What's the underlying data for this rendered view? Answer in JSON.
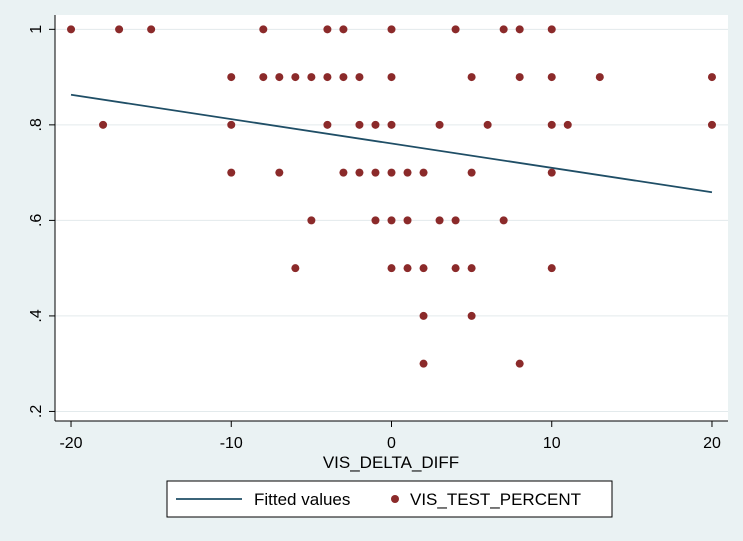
{
  "chart_data": {
    "type": "scatter",
    "title": "",
    "xlabel": "VIS_DELTA_DIFF",
    "ylabel": "",
    "xlim": [
      -21,
      21
    ],
    "ylim": [
      0.18,
      1.03
    ],
    "grid": true,
    "x_ticks": [
      -20,
      -10,
      0,
      10,
      20
    ],
    "x_tick_labels": [
      "-20",
      "-10",
      "0",
      "10",
      "20"
    ],
    "y_ticks": [
      0.2,
      0.4,
      0.6,
      0.8,
      1.0
    ],
    "y_tick_labels": [
      ".2",
      ".4",
      ".6",
      ".8",
      "1"
    ],
    "legend_position": "bottom",
    "colors": {
      "scatter": "#8b2a2a",
      "fit": "#1f4e66",
      "plot_bg": "#ffffff",
      "outer_bg": "#eaf2f3",
      "grid": "#e3eaec"
    },
    "series": [
      {
        "name": "Fitted values",
        "kind": "line",
        "x": [
          -20,
          20
        ],
        "y": [
          0.863,
          0.659
        ]
      },
      {
        "name": "VIS_TEST_PERCENT",
        "kind": "scatter",
        "points": [
          [
            -20,
            1.0
          ],
          [
            -17,
            1.0
          ],
          [
            -15,
            1.0
          ],
          [
            -8,
            1.0
          ],
          [
            -4,
            1.0
          ],
          [
            -3,
            1.0
          ],
          [
            0,
            1.0
          ],
          [
            4,
            1.0
          ],
          [
            7,
            1.0
          ],
          [
            8,
            1.0
          ],
          [
            10,
            1.0
          ],
          [
            -10,
            0.9
          ],
          [
            -8,
            0.9
          ],
          [
            -7,
            0.9
          ],
          [
            -6,
            0.9
          ],
          [
            -5,
            0.9
          ],
          [
            -4,
            0.9
          ],
          [
            -3,
            0.9
          ],
          [
            -2,
            0.9
          ],
          [
            0,
            0.9
          ],
          [
            5,
            0.9
          ],
          [
            8,
            0.9
          ],
          [
            10,
            0.9
          ],
          [
            13,
            0.9
          ],
          [
            20,
            0.9
          ],
          [
            -18,
            0.8
          ],
          [
            -10,
            0.8
          ],
          [
            -4,
            0.8
          ],
          [
            -2,
            0.8
          ],
          [
            -1,
            0.8
          ],
          [
            0,
            0.8
          ],
          [
            3,
            0.8
          ],
          [
            6,
            0.8
          ],
          [
            10,
            0.8
          ],
          [
            11,
            0.8
          ],
          [
            20,
            0.8
          ],
          [
            -10,
            0.7
          ],
          [
            -7,
            0.7
          ],
          [
            -3,
            0.7
          ],
          [
            -2,
            0.7
          ],
          [
            -1,
            0.7
          ],
          [
            0,
            0.7
          ],
          [
            1,
            0.7
          ],
          [
            2,
            0.7
          ],
          [
            5,
            0.7
          ],
          [
            10,
            0.7
          ],
          [
            -5,
            0.6
          ],
          [
            -1,
            0.6
          ],
          [
            0,
            0.6
          ],
          [
            1,
            0.6
          ],
          [
            3,
            0.6
          ],
          [
            4,
            0.6
          ],
          [
            7,
            0.6
          ],
          [
            -6,
            0.5
          ],
          [
            0,
            0.5
          ],
          [
            1,
            0.5
          ],
          [
            2,
            0.5
          ],
          [
            4,
            0.5
          ],
          [
            5,
            0.5
          ],
          [
            10,
            0.5
          ],
          [
            2,
            0.4
          ],
          [
            5,
            0.4
          ],
          [
            2,
            0.3
          ],
          [
            8,
            0.3
          ]
        ]
      }
    ]
  }
}
